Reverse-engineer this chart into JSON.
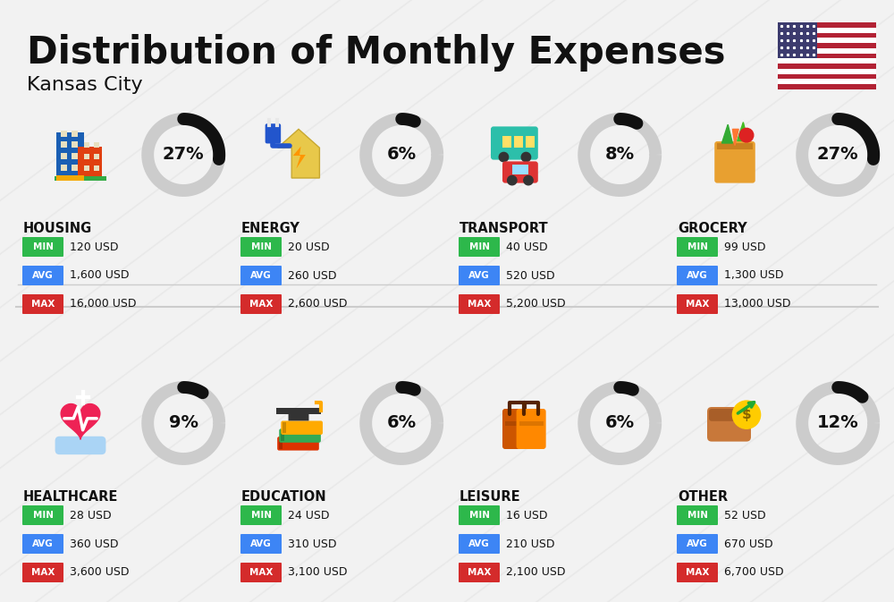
{
  "title": "Distribution of Monthly Expenses",
  "subtitle": "Kansas City",
  "background_color": "#f2f2f2",
  "categories": [
    {
      "name": "HOUSING",
      "pct": 27,
      "min_val": "120 USD",
      "avg_val": "1,600 USD",
      "max_val": "16,000 USD",
      "icon": "housing",
      "row": 0,
      "col": 0
    },
    {
      "name": "ENERGY",
      "pct": 6,
      "min_val": "20 USD",
      "avg_val": "260 USD",
      "max_val": "2,600 USD",
      "icon": "energy",
      "row": 0,
      "col": 1
    },
    {
      "name": "TRANSPORT",
      "pct": 8,
      "min_val": "40 USD",
      "avg_val": "520 USD",
      "max_val": "5,200 USD",
      "icon": "transport",
      "row": 0,
      "col": 2
    },
    {
      "name": "GROCERY",
      "pct": 27,
      "min_val": "99 USD",
      "avg_val": "1,300 USD",
      "max_val": "13,000 USD",
      "icon": "grocery",
      "row": 0,
      "col": 3
    },
    {
      "name": "HEALTHCARE",
      "pct": 9,
      "min_val": "28 USD",
      "avg_val": "360 USD",
      "max_val": "3,600 USD",
      "icon": "healthcare",
      "row": 1,
      "col": 0
    },
    {
      "name": "EDUCATION",
      "pct": 6,
      "min_val": "24 USD",
      "avg_val": "310 USD",
      "max_val": "3,100 USD",
      "icon": "education",
      "row": 1,
      "col": 1
    },
    {
      "name": "LEISURE",
      "pct": 6,
      "min_val": "16 USD",
      "avg_val": "210 USD",
      "max_val": "2,100 USD",
      "icon": "leisure",
      "row": 1,
      "col": 2
    },
    {
      "name": "OTHER",
      "pct": 12,
      "min_val": "52 USD",
      "avg_val": "670 USD",
      "max_val": "6,700 USD",
      "icon": "other",
      "row": 1,
      "col": 3
    }
  ],
  "min_color": "#2db84b",
  "avg_color": "#3d85f5",
  "max_color": "#d42b2b",
  "text_color": "#111111",
  "ring_bg_color": "#cccccc",
  "ring_fg_color": "#111111",
  "divider_color": "#cccccc",
  "diagonal_color": "#e8e8e8"
}
